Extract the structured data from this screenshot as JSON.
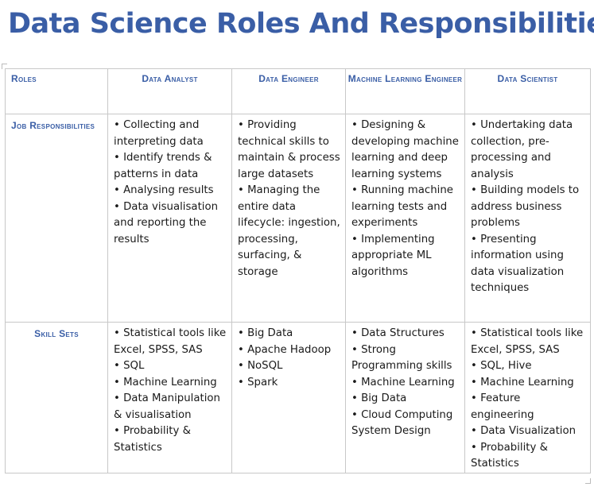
{
  "title": "Data Science Roles And Responsibilities",
  "table": {
    "corner_header": "Roles",
    "columns": [
      "Data Analyst",
      "Data Engineer",
      "Machine Learning Engineer",
      "Data Scientist"
    ],
    "rows": [
      {
        "label": "Job Responsibilities",
        "cells": [
          "• Collecting and interpreting data\n• Identify trends & patterns in data\n• Analysing results\n• Data visualisation and reporting the results",
          "• Providing technical skills to maintain & process large datasets\n• Managing the entire data lifecycle: ingestion, processing, surfacing, & storage",
          "• Designing & developing machine learning and deep learning systems\n• Running machine learning tests and experiments\n• Implementing appropriate ML algorithms",
          "• Undertaking data collection, pre-processing and analysis\n• Building models to address business problems\n• Presenting information using data visualization techniques"
        ]
      },
      {
        "label": "Skill Sets",
        "cells": [
          "• Statistical tools like Excel, SPSS, SAS\n• SQL\n• Machine Learning\n• Data Manipulation & visualisation\n• Probability & Statistics",
          "• Big Data\n• Apache Hadoop\n• NoSQL\n• Spark",
          "• Data Structures\n• Strong Programming skills\n• Machine Learning\n• Big Data\n• Cloud Computing System Design",
          "• Statistical tools like Excel, SPSS, SAS\n• SQL, Hive\n• Machine Learning\n• Feature engineering\n• Data Visualization\n• Probability & Statistics"
        ]
      }
    ]
  },
  "colors": {
    "title": "#3a5ea6",
    "header_text": "#3a5ea6",
    "body_text": "#1a1a1a",
    "grid": "#c8c8c8"
  }
}
